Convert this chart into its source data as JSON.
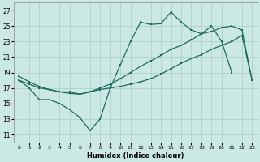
{
  "xlabel": "Humidex (Indice chaleur)",
  "xlim": [
    -0.5,
    23.5
  ],
  "ylim": [
    10,
    28
  ],
  "yticks": [
    11,
    13,
    15,
    17,
    19,
    21,
    23,
    25,
    27
  ],
  "xticks": [
    0,
    1,
    2,
    3,
    4,
    5,
    6,
    7,
    8,
    9,
    10,
    11,
    12,
    13,
    14,
    15,
    16,
    17,
    18,
    19,
    20,
    21,
    22,
    23
  ],
  "background_color": "#cce8e4",
  "grid_color": "#aaccca",
  "line_color": "#1a6b5a",
  "s1_x": [
    0,
    1,
    2,
    3,
    4,
    5,
    6,
    7,
    8,
    9,
    10,
    11,
    12,
    13,
    14,
    15,
    16,
    17,
    18,
    19,
    20,
    21
  ],
  "s1_y": [
    18.0,
    17.0,
    15.5,
    15.5,
    15.0,
    14.2,
    13.2,
    11.5,
    13.0,
    17.0,
    20.0,
    23.0,
    25.5,
    25.2,
    25.3,
    26.8,
    25.5,
    24.5,
    24.0,
    25.0,
    23.0,
    19.0
  ],
  "s2_x": [
    0,
    1,
    2,
    3,
    4,
    5,
    6,
    7,
    8,
    9,
    10,
    11,
    12,
    13,
    14,
    15,
    16,
    17,
    18,
    19,
    20,
    21,
    22,
    23
  ],
  "s2_y": [
    18.0,
    17.5,
    17.0,
    16.8,
    16.5,
    16.5,
    16.2,
    16.5,
    16.8,
    17.0,
    17.2,
    17.5,
    17.8,
    18.2,
    18.8,
    19.5,
    20.2,
    20.8,
    21.3,
    22.0,
    22.5,
    23.0,
    23.8,
    18.0
  ],
  "s3_x": [
    0,
    1,
    2,
    3,
    4,
    5,
    6,
    7,
    8,
    9,
    10,
    11,
    12,
    13,
    14,
    15,
    16,
    17,
    18,
    19,
    20,
    21,
    22,
    23
  ],
  "s3_y": [
    18.5,
    17.8,
    17.2,
    16.8,
    16.5,
    16.3,
    16.2,
    16.5,
    17.0,
    17.5,
    18.2,
    19.0,
    19.8,
    20.5,
    21.2,
    22.0,
    22.5,
    23.2,
    24.0,
    24.3,
    24.8,
    25.0,
    24.5,
    18.0
  ]
}
